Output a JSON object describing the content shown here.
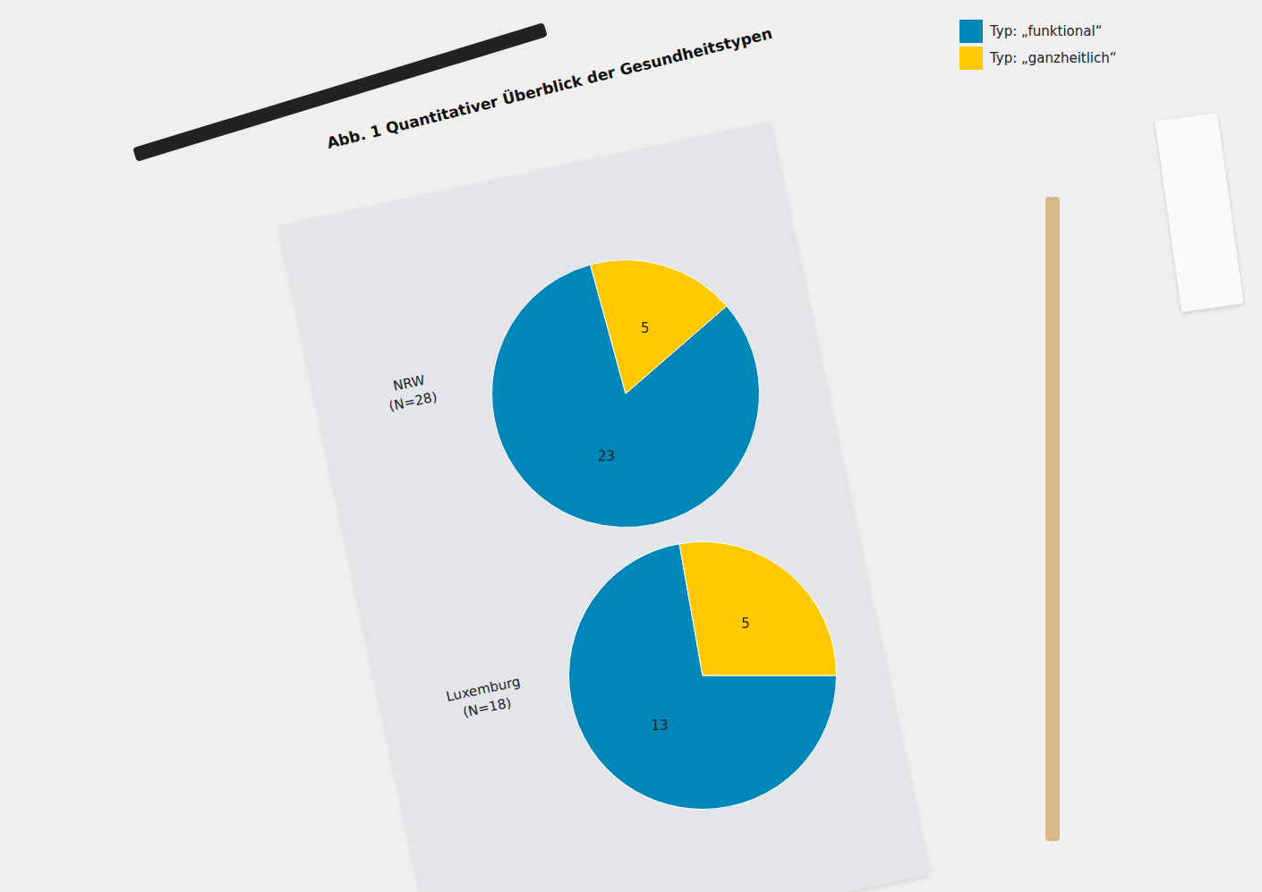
{
  "title": "Abb. 1 Quantitativer Überblick der Gesundheitstypen",
  "chart_data": [
    {
      "type": "pie",
      "subtitle": "NRW (N=28)",
      "categories": [
        "Typ: „funktional“",
        "Typ: „ganzheitlich“"
      ],
      "values": [
        23,
        5
      ],
      "colors": [
        "#0086b8",
        "#ffc800"
      ],
      "data_labels": true,
      "legend": "top right"
    },
    {
      "type": "pie",
      "subtitle": "Luxemburg (N=18)",
      "categories": [
        "Typ: „funktional“",
        "Typ: „ganzheitlich“"
      ],
      "values": [
        13,
        5
      ],
      "colors": [
        "#0086b8",
        "#ffc800"
      ],
      "data_labels": true
    }
  ]
}
